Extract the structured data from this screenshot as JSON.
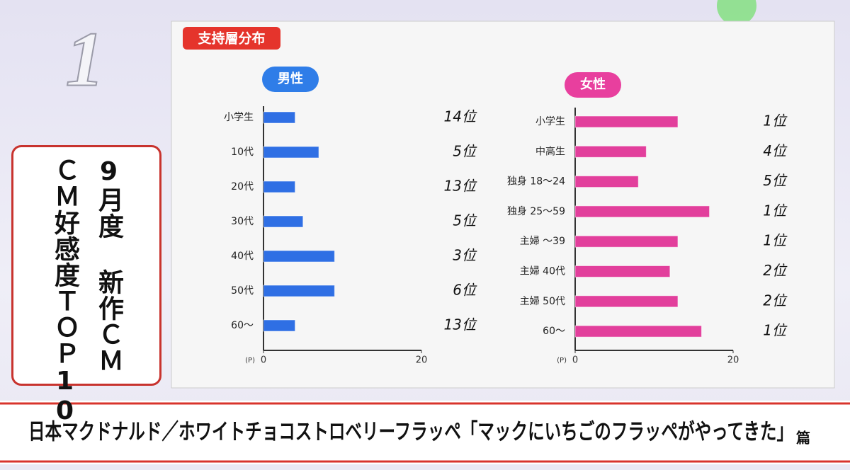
{
  "rank": "1",
  "section_label": "支持層分布",
  "side_label": [
    "9月度 新作ＣＭ",
    "ＣＭ好感度ＴＯＰ10"
  ],
  "caption": [
    "日本マクドナルド／ホワイトチョコストロベリーフラッペ「マックにいちごのフラッペがやってきた」",
    "篇"
  ],
  "chart_data": [
    {
      "type": "hbar",
      "title": "男性",
      "color": "#2f6fe4",
      "title_color": "#2f7de8",
      "categories": [
        "小学生",
        "10代",
        "20代",
        "30代",
        "40代",
        "50代",
        "60～"
      ],
      "values": [
        4,
        7,
        4,
        5,
        9,
        9,
        4
      ],
      "rank_labels": [
        "14位",
        "5位",
        "13位",
        "5位",
        "3位",
        "6位",
        "13位"
      ],
      "xlabel": "(P)",
      "xlim": [
        0,
        20
      ],
      "xticks": [
        0,
        20
      ]
    },
    {
      "type": "hbar",
      "title": "女性",
      "color": "#e23f9c",
      "title_color": "#e83f9e",
      "categories": [
        "小学生",
        "中高生",
        "独身 18～24",
        "独身 25～59",
        "主婦 ～39",
        "主婦 40代",
        "主婦 50代",
        "60～"
      ],
      "values": [
        13,
        9,
        8,
        17,
        13,
        12,
        13,
        16
      ],
      "rank_labels": [
        "1位",
        "4位",
        "5位",
        "1位",
        "1位",
        "2位",
        "2位",
        "1位"
      ],
      "xlabel": "(P)",
      "xlim": [
        0,
        20
      ],
      "xticks": [
        0,
        20
      ]
    }
  ]
}
